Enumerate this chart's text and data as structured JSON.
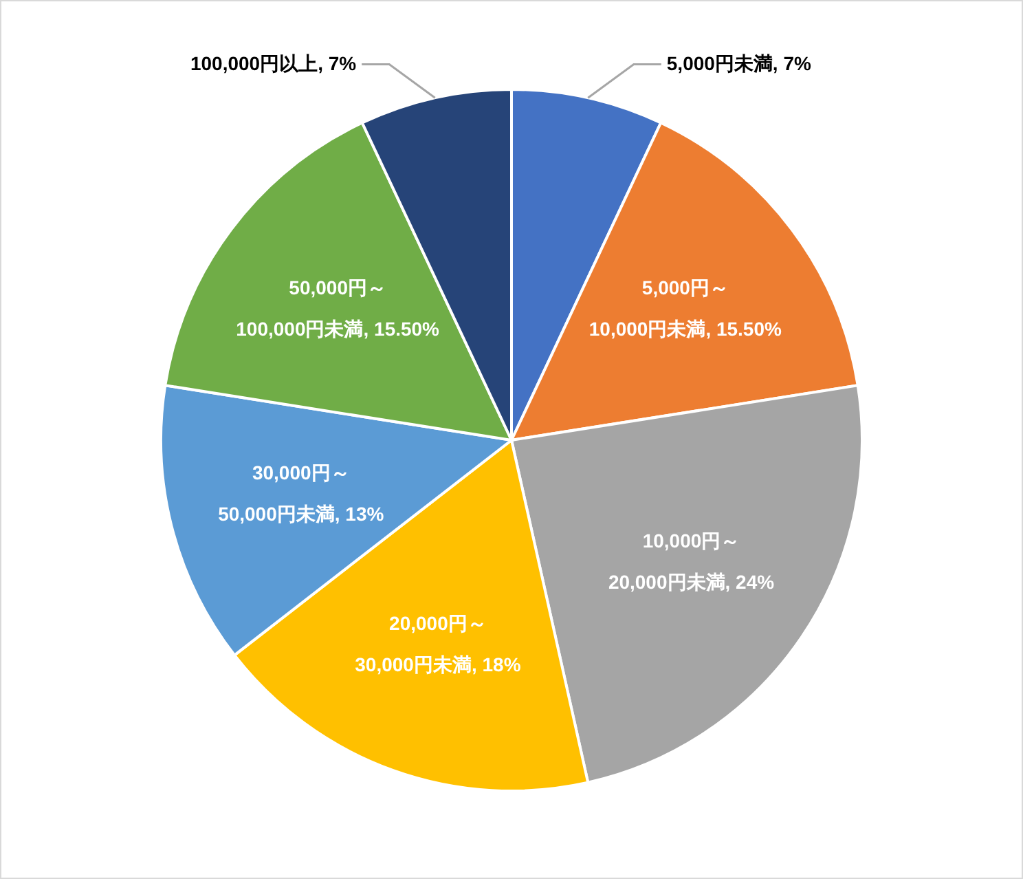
{
  "chart_data": {
    "type": "pie",
    "categories": [
      "5,000円未満",
      "5,000円～10,000円未満",
      "10,000円～20,000円未満",
      "20,000円～30,000円未満",
      "30,000円～50,000円未満",
      "50,000円～100,000円未満",
      "100,000円以上"
    ],
    "values": [
      7,
      15.5,
      24,
      18,
      13,
      15.5,
      7
    ],
    "value_labels": [
      "7%",
      "15.50%",
      "24%",
      "18%",
      "13%",
      "15.50%",
      "7%"
    ],
    "colors": [
      "#4472c4",
      "#ed7d31",
      "#a5a5a5",
      "#ffc000",
      "#5b9bd5",
      "#70ad47",
      "#264478"
    ]
  }
}
